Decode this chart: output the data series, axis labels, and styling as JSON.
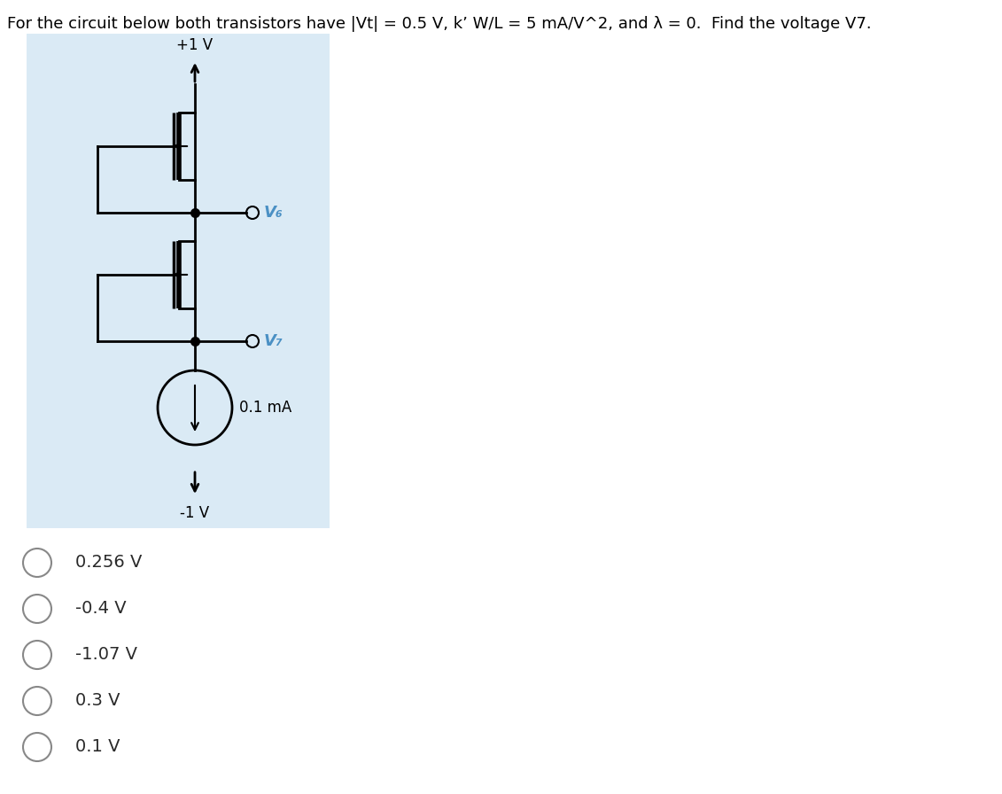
{
  "title": "For the circuit below both transistors have |Vt| = 0.5 V, k’ W/L = 5 mA/V^2, and λ = 0.  Find the voltage V7.",
  "circuit_bg": "#daeaf5",
  "options": [
    "0.256 V",
    "-0.4 V",
    "-1.07 V",
    "0.3 V",
    "0.1 V"
  ],
  "vdd_label": "+1 V",
  "vss_label": "-1 V",
  "v6_label": "V₆",
  "v7_label": "V₇",
  "isource_label": "0.1 mA",
  "v_label_color": "#4a90c4",
  "option_text_color": "#2a2a2a"
}
